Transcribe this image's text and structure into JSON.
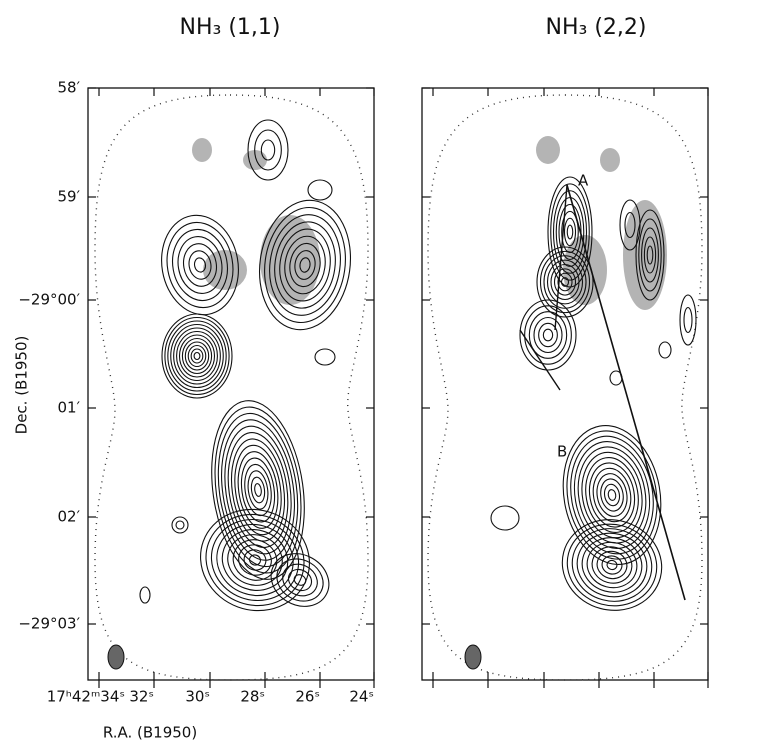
{
  "panels": [
    {
      "title": "NH₃ (1,1)"
    },
    {
      "title": "NH₃ (2,2)",
      "annotations": [
        "A",
        "B"
      ]
    }
  ],
  "y_axis": {
    "label": "Dec. (B1950)",
    "ticks": [
      "58′",
      "59′",
      "−29°00′",
      "01′",
      "02′",
      "−29°03′"
    ]
  },
  "x_axis": {
    "label": "R.A. (B1950)",
    "ticks": [
      "17ʰ42ᵐ34ˢ",
      "32ˢ",
      "30ˢ",
      "28ˢ",
      "26ˢ",
      "24ˢ"
    ]
  }
}
